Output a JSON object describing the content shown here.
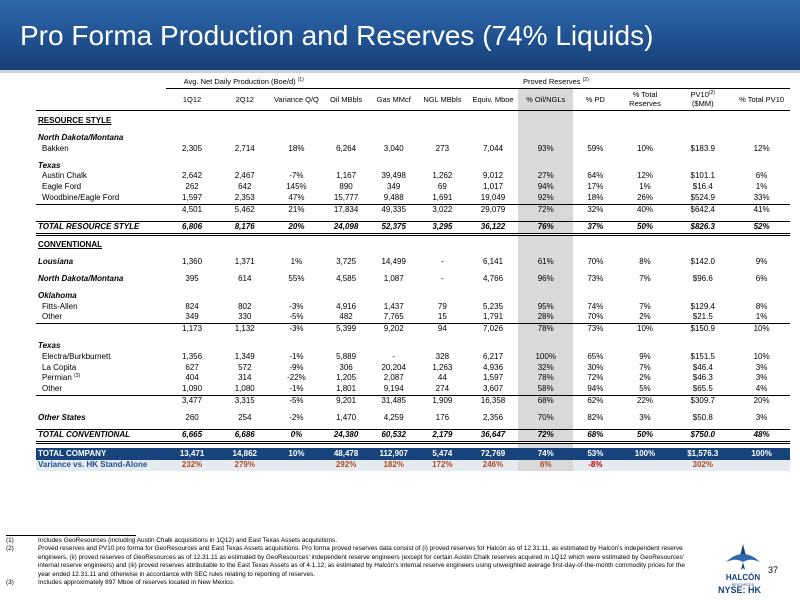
{
  "title": "Pro Forma Production and Reserves (74% Liquids)",
  "header_groups": {
    "production": "Avg. Net Daily Production (Boe/d)",
    "production_note": "(1)",
    "reserves": "Proved Reserves",
    "reserves_note": "(2)"
  },
  "columns": [
    "1Q12",
    "2Q12",
    "Variance Q/Q",
    "Oil MBbls",
    "Gas MMcf",
    "NGL MBbls",
    "Equiv. Mboe",
    "% Oil/NGLs",
    "% PD",
    "% Total Reserves",
    "PV10",
    "% Total PV10"
  ],
  "pv10_note": "(2)",
  "pv10_unit": "($MM)",
  "sections": {
    "resource_style": "RESOURCE STYLE",
    "conventional": "CONVENTIONAL"
  },
  "rows": {
    "north_dakota_montana_rs": "North Dakota/Montana",
    "bakken": [
      "Bakken",
      "2,305",
      "2,714",
      "18%",
      "6,264",
      "3,040",
      "273",
      "7,044",
      "93%",
      "59%",
      "10%",
      "$183.9",
      "12%"
    ],
    "texas_rs": "Texas",
    "austin_chalk": [
      "Austin Chalk",
      "2,642",
      "2,467",
      "-7%",
      "1,167",
      "39,498",
      "1,262",
      "9,012",
      "27%",
      "64%",
      "12%",
      "$101.1",
      "6%"
    ],
    "eagle_ford": [
      "Eagle Ford",
      "262",
      "642",
      "145%",
      "890",
      "349",
      "69",
      "1,017",
      "94%",
      "17%",
      "1%",
      "$16.4",
      "1%"
    ],
    "woodbine": [
      "Woodbine/Eagle Ford",
      "1,597",
      "2,353",
      "47%",
      "15,777",
      "9,488",
      "1,691",
      "19,049",
      "92%",
      "18%",
      "26%",
      "$524.9",
      "33%"
    ],
    "texas_rs_sub": [
      "",
      "4,501",
      "5,462",
      "21%",
      "17,834",
      "49,335",
      "3,022",
      "29,079",
      "72%",
      "32%",
      "40%",
      "$642.4",
      "41%"
    ],
    "total_rs": [
      "TOTAL RESOURCE STYLE",
      "6,806",
      "8,176",
      "20%",
      "24,098",
      "52,375",
      "3,295",
      "36,122",
      "76%",
      "37%",
      "50%",
      "$826.3",
      "52%"
    ],
    "louisiana": [
      "Lousiana",
      "1,360",
      "1,371",
      "1%",
      "3,725",
      "14,499",
      "-",
      "6,141",
      "61%",
      "70%",
      "8%",
      "$142.0",
      "9%"
    ],
    "nd_conv": [
      "North Dakota/Montana",
      "395",
      "614",
      "55%",
      "4,585",
      "1,087",
      "-",
      "4,766",
      "96%",
      "73%",
      "7%",
      "$96.6",
      "6%"
    ],
    "oklahoma": "Oklahoma",
    "fitts_allen": [
      "Fitts-Allen",
      "824",
      "802",
      "-3%",
      "4,916",
      "1,437",
      "79",
      "5,235",
      "95%",
      "74%",
      "7%",
      "$129.4",
      "8%"
    ],
    "ok_other": [
      "Other",
      "349",
      "330",
      "-5%",
      "482",
      "7,765",
      "15",
      "1,791",
      "28%",
      "70%",
      "2%",
      "$21.5",
      "1%"
    ],
    "ok_sub": [
      "",
      "1,173",
      "1,132",
      "-3%",
      "5,399",
      "9,202",
      "94",
      "7,026",
      "78%",
      "73%",
      "10%",
      "$150.9",
      "10%"
    ],
    "texas_conv": "Texas",
    "electra": [
      "Electra/Burkburnett",
      "1,356",
      "1,349",
      "-1%",
      "5,889",
      "-",
      "328",
      "6,217",
      "100%",
      "65%",
      "9%",
      "$151.5",
      "10%"
    ],
    "la_copita": [
      "La Copita",
      "627",
      "572",
      "-9%",
      "306",
      "20,204",
      "1,263",
      "4,936",
      "32%",
      "30%",
      "7%",
      "$46.4",
      "3%"
    ],
    "permian": [
      "Permian",
      "404",
      "314",
      "-22%",
      "1,205",
      "2,087",
      "44",
      "1,597",
      "78%",
      "72%",
      "2%",
      "$46.3",
      "3%"
    ],
    "permian_note": "(3)",
    "tx_other": [
      "Other",
      "1,090",
      "1,080",
      "-1%",
      "1,801",
      "9,194",
      "274",
      "3,607",
      "58%",
      "94%",
      "5%",
      "$65.5",
      "4%"
    ],
    "tx_sub": [
      "",
      "3,477",
      "3,315",
      "-5%",
      "9,201",
      "31,485",
      "1,909",
      "16,358",
      "68%",
      "62%",
      "22%",
      "$309.7",
      "20%"
    ],
    "other_states": [
      "Other States",
      "260",
      "254",
      "-2%",
      "1,470",
      "4,259",
      "176",
      "2,356",
      "70%",
      "82%",
      "3%",
      "$50.8",
      "3%"
    ],
    "total_conv": [
      "TOTAL CONVENTIONAL",
      "6,665",
      "6,686",
      "0%",
      "24,380",
      "60,532",
      "2,179",
      "36,647",
      "72%",
      "68%",
      "50%",
      "$750.0",
      "48%"
    ],
    "total_company": [
      "TOTAL COMPANY",
      "13,471",
      "14,862",
      "10%",
      "48,478",
      "112,907",
      "5,474",
      "72,769",
      "74%",
      "53%",
      "100%",
      "$1,576.3",
      "100%"
    ],
    "variance": [
      "Variance vs. HK Stand-Alone",
      "232%",
      "279%",
      "",
      "292%",
      "182%",
      "172%",
      "246%",
      "6%",
      "-8%",
      "",
      "302%",
      ""
    ]
  },
  "footnotes": [
    {
      "mark": "(1)",
      "text": "Includes GeoResources (including Austin Chalk acquisitions in 1Q12) and East Texas Assets acquisitions."
    },
    {
      "mark": "(2)",
      "text": "Proved reserves and PV10 pro forma for GeoResources and East Texas Assets acquisitions. Pro forma proved reserves data consist of (i) proved reserves for Halcón as of 12.31.11, as estimated by Halcón's independent reserve engineers, (ii) proved reserves of GeoResources as of 12.31.11 as estimated by GeoResources' independent reserve engineers (except for certain Austin Chalk reserves acquired in 1Q12 which were estimated by GeoResources' internal reserve engineers) and (iii) proved reserves attributable to the East Texas Assets as of 4.1.12, as estimated by Halcón's internal reserve engineers using unweighted average first-day-of-the-month commodity prices for the year ended 12.31.11 and otherwise in accordance with SEC rules relating to reporting of reserves."
    },
    {
      "mark": "(3)",
      "text": "Includes approximately 897 Mboe of reserves located in New Mexico."
    }
  ],
  "logo": {
    "name": "HALCÓN",
    "sub": "RESOURCES"
  },
  "page_number": "37",
  "ticker": "NYSE: HK",
  "colors": {
    "header_blue": "#1f4f8e",
    "company_row": "#17437d",
    "shade": "#d9d9d9",
    "negative": "#c00000"
  }
}
